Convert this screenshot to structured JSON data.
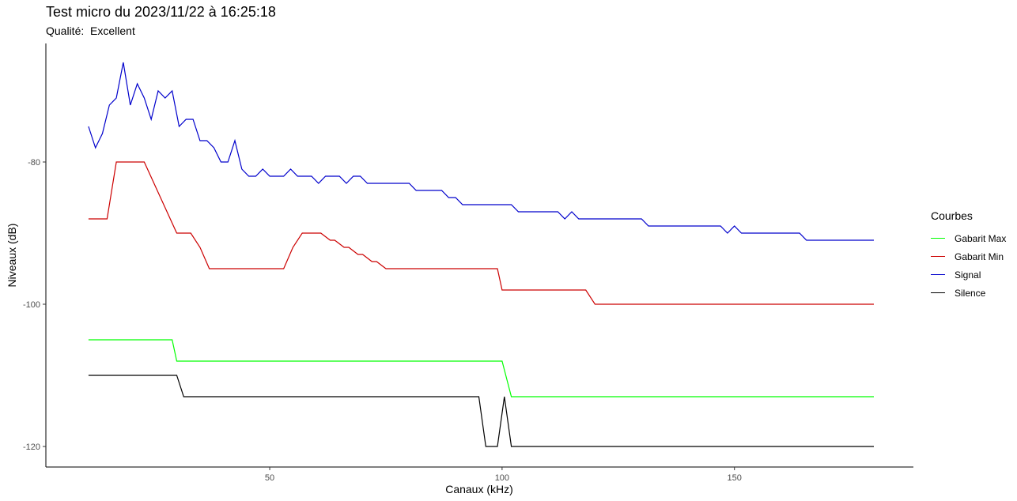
{
  "chart_data": {
    "type": "line",
    "title": "Test micro du 2023/11/22 à 16:25:18",
    "subtitle": "Qualité:  Excellent",
    "xlabel": "Canaux (kHz)",
    "ylabel": "Niveaux (dB)",
    "xlim": [
      10,
      180
    ],
    "ylim": [
      -122.5,
      -64
    ],
    "x_ticks": [
      50,
      100,
      150
    ],
    "y_ticks": [
      -80,
      -100,
      -120
    ],
    "grid": false,
    "legend": {
      "title": "Courbes",
      "position": "right"
    },
    "series": [
      {
        "name": "Gabarit Max",
        "color": "#00ff00",
        "points": [
          [
            11,
            -105
          ],
          [
            29,
            -105
          ],
          [
            30,
            -108
          ],
          [
            100,
            -108
          ],
          [
            102,
            -113
          ],
          [
            180,
            -113
          ]
        ]
      },
      {
        "name": "Gabarit Min",
        "color": "#cc0000",
        "points": [
          [
            11,
            -88
          ],
          [
            15,
            -88
          ],
          [
            17,
            -80
          ],
          [
            23,
            -80
          ],
          [
            30,
            -90
          ],
          [
            33,
            -90
          ],
          [
            35,
            -92
          ],
          [
            37,
            -95
          ],
          [
            53,
            -95
          ],
          [
            55,
            -92
          ],
          [
            57,
            -90
          ],
          [
            61,
            -90
          ],
          [
            63,
            -91
          ],
          [
            64,
            -91
          ],
          [
            66,
            -92
          ],
          [
            67,
            -92
          ],
          [
            69,
            -93
          ],
          [
            70,
            -93
          ],
          [
            72,
            -94
          ],
          [
            73,
            -94
          ],
          [
            75,
            -95
          ],
          [
            99,
            -95
          ],
          [
            100,
            -98
          ],
          [
            118,
            -98
          ],
          [
            120,
            -100
          ],
          [
            180,
            -100
          ]
        ]
      },
      {
        "name": "Signal",
        "color": "#0000cc",
        "points": [
          [
            11,
            -75
          ],
          [
            12.5,
            -78
          ],
          [
            14,
            -76
          ],
          [
            15.5,
            -72
          ],
          [
            17,
            -71
          ],
          [
            18.5,
            -66
          ],
          [
            20,
            -72
          ],
          [
            21.5,
            -69
          ],
          [
            23,
            -71
          ],
          [
            24.5,
            -74
          ],
          [
            26,
            -70
          ],
          [
            27.5,
            -71
          ],
          [
            29,
            -70
          ],
          [
            30.5,
            -75
          ],
          [
            32,
            -74
          ],
          [
            33.5,
            -74
          ],
          [
            35,
            -77
          ],
          [
            36.5,
            -77
          ],
          [
            38,
            -78
          ],
          [
            39.5,
            -80
          ],
          [
            41,
            -80
          ],
          [
            42.5,
            -77
          ],
          [
            44,
            -81
          ],
          [
            45.5,
            -82
          ],
          [
            47,
            -82
          ],
          [
            48.5,
            -81
          ],
          [
            50,
            -82
          ],
          [
            53,
            -82
          ],
          [
            54.5,
            -81
          ],
          [
            56,
            -82
          ],
          [
            59,
            -82
          ],
          [
            60.5,
            -83
          ],
          [
            62,
            -82
          ],
          [
            65,
            -82
          ],
          [
            66.5,
            -83
          ],
          [
            68,
            -82
          ],
          [
            69.5,
            -82
          ],
          [
            71,
            -83
          ],
          [
            80,
            -83
          ],
          [
            81.5,
            -84
          ],
          [
            87,
            -84
          ],
          [
            88.5,
            -85
          ],
          [
            90,
            -85
          ],
          [
            91.5,
            -86
          ],
          [
            102,
            -86
          ],
          [
            103.5,
            -87
          ],
          [
            112,
            -87
          ],
          [
            113.5,
            -88
          ],
          [
            115,
            -87
          ],
          [
            116.5,
            -88
          ],
          [
            130,
            -88
          ],
          [
            131.5,
            -89
          ],
          [
            147,
            -89
          ],
          [
            148.5,
            -90
          ],
          [
            150,
            -89
          ],
          [
            151.5,
            -90
          ],
          [
            164,
            -90
          ],
          [
            165.5,
            -91
          ],
          [
            180,
            -91
          ]
        ]
      },
      {
        "name": "Silence",
        "color": "#000000",
        "points": [
          [
            11,
            -110
          ],
          [
            30,
            -110
          ],
          [
            31.5,
            -113
          ],
          [
            95,
            -113
          ],
          [
            96.5,
            -120
          ],
          [
            99,
            -120
          ],
          [
            100.5,
            -113
          ],
          [
            102,
            -120
          ],
          [
            180,
            -120
          ]
        ]
      }
    ]
  }
}
